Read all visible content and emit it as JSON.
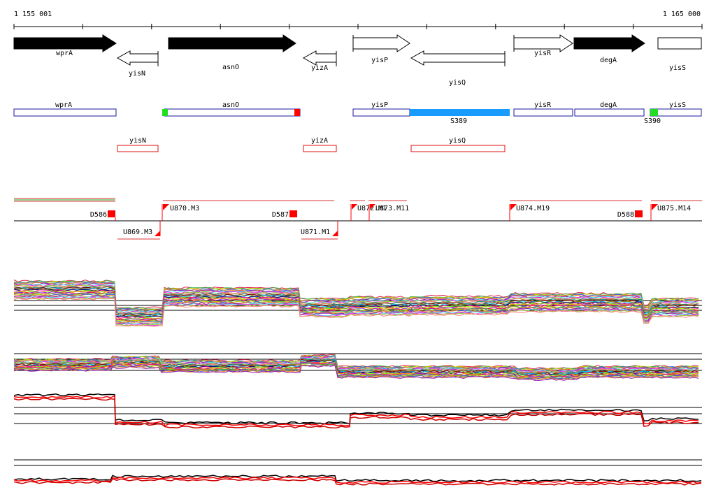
{
  "ruler": {
    "start_label": "1 155 001",
    "end_label": "1 165 000"
  },
  "genes": [
    {
      "id": "wprA",
      "label": "wprA",
      "strand": "+",
      "fill": "#000000",
      "row": "top"
    },
    {
      "id": "yisN",
      "label": "yisN",
      "strand": "-",
      "fill": "#ffffff",
      "row": "bottom"
    },
    {
      "id": "asnO",
      "label": "asnO",
      "strand": "+",
      "fill": "#000000",
      "row": "top"
    },
    {
      "id": "yizA",
      "label": "yizA",
      "strand": "-",
      "fill": "#ffffff",
      "row": "bottom"
    },
    {
      "id": "yisP",
      "label": "yisP",
      "strand": "+",
      "fill": "#ffffff",
      "row": "top"
    },
    {
      "id": "yisQ",
      "label": "yisQ",
      "strand": "-",
      "fill": "#ffffff",
      "row": "bottom"
    },
    {
      "id": "yisR",
      "label": "yisR",
      "strand": "+",
      "fill": "#ffffff",
      "row": "top"
    },
    {
      "id": "degA",
      "label": "degA",
      "strand": "+",
      "fill": "#000000",
      "row": "top"
    },
    {
      "id": "yisS",
      "label": "yisS",
      "strand": "+",
      "fill": "#ffffff",
      "row": "top"
    }
  ],
  "annotation_forward": [
    "wprA",
    "asnO",
    "yisP",
    "yisR",
    "degA",
    "yisS"
  ],
  "annotation_reverse": [
    "yisN",
    "yizA",
    "yisQ"
  ],
  "segments": [
    "S389",
    "S390"
  ],
  "units_upper": [
    "U870.M3",
    "U872.M1",
    "U873.M11",
    "U874.M19",
    "U875.M14"
  ],
  "units_lower": [
    "U869.M3",
    "U871.M1"
  ],
  "downregions": [
    "D586",
    "D587",
    "D588"
  ],
  "colors": {
    "gene_box_forward": "#1a1a9e",
    "gene_box_reverse": "#e01010",
    "segment": "#1a9cff",
    "start_marker": "#22dd22",
    "end_marker": "#ff0000",
    "unit_marker": "#ff0000",
    "line_black": "#000000",
    "line_red": "#ff0000"
  }
}
